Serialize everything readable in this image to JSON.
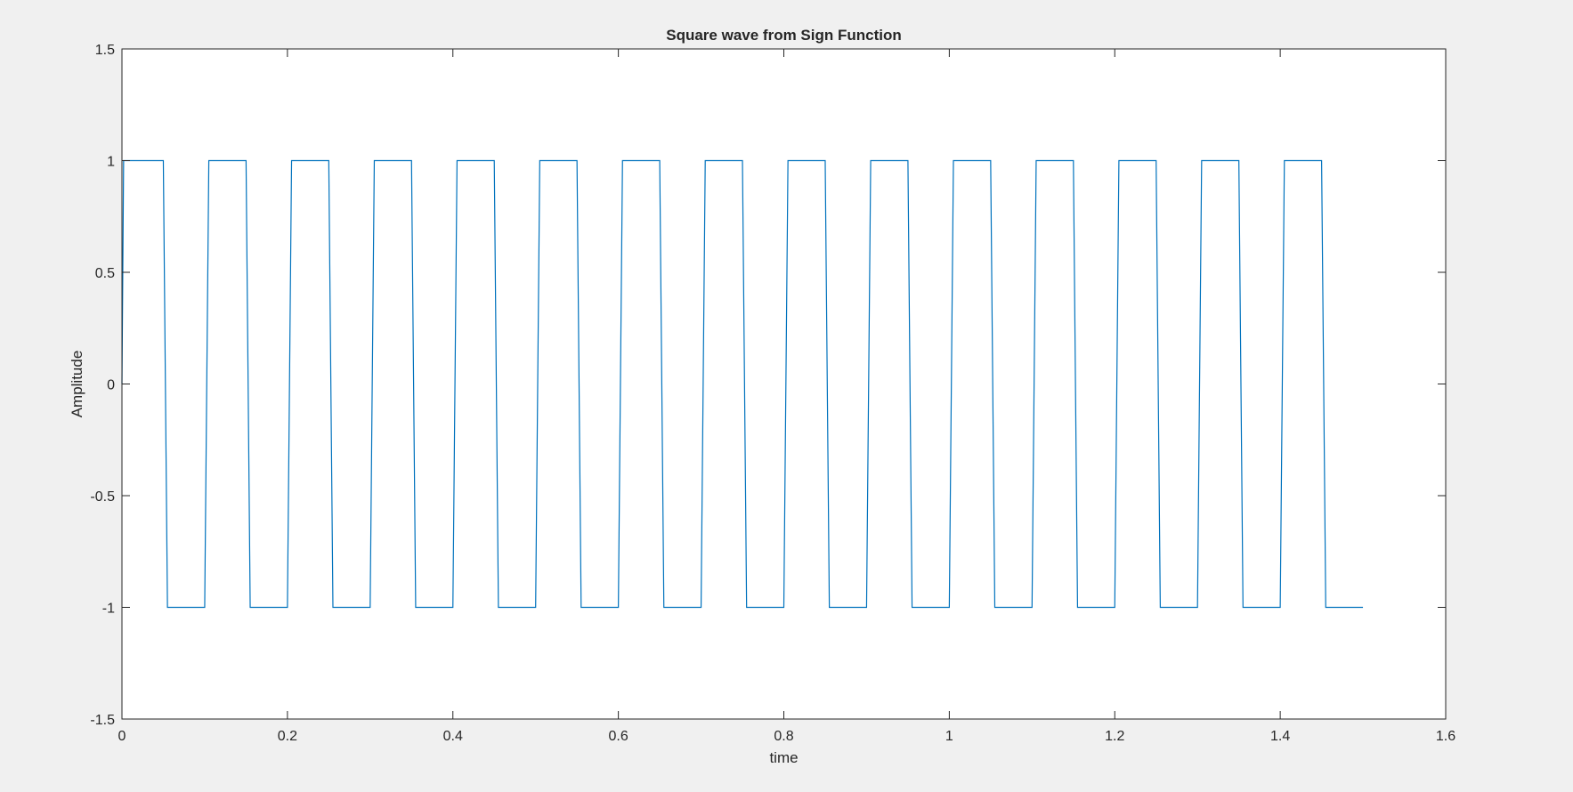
{
  "chart_data": {
    "type": "line",
    "title": "Square wave from Sign Function",
    "xlabel": "time",
    "ylabel": "Amplitude",
    "xlim": [
      0,
      1.6
    ],
    "ylim": [
      -1.5,
      1.5
    ],
    "xticks": [
      0,
      0.2,
      0.4,
      0.6,
      0.8,
      1,
      1.2,
      1.4,
      1.6
    ],
    "xtick_labels": [
      "0",
      "0.2",
      "0.4",
      "0.6",
      "0.8",
      "1",
      "1.2",
      "1.4",
      "1.6"
    ],
    "yticks": [
      -1.5,
      -1,
      -0.5,
      0,
      0.5,
      1,
      1.5
    ],
    "ytick_labels": [
      "-1.5",
      "-1",
      "-0.5",
      "0",
      "0.5",
      "1",
      "1.5"
    ],
    "grid": false,
    "legend": false,
    "series": [
      {
        "color": "#0072bd",
        "x": [
          0,
          0.002,
          0.05,
          0.055,
          0.1,
          0.105,
          0.15,
          0.155,
          0.2,
          0.205,
          0.25,
          0.255,
          0.3,
          0.305,
          0.35,
          0.355,
          0.4,
          0.405,
          0.45,
          0.455,
          0.5,
          0.505,
          0.55,
          0.555,
          0.6,
          0.605,
          0.65,
          0.655,
          0.7,
          0.705,
          0.75,
          0.755,
          0.8,
          0.805,
          0.85,
          0.855,
          0.9,
          0.905,
          0.95,
          0.955,
          1.0,
          1.005,
          1.05,
          1.055,
          1.1,
          1.105,
          1.15,
          1.155,
          1.2,
          1.205,
          1.25,
          1.255,
          1.3,
          1.305,
          1.35,
          1.355,
          1.4,
          1.405,
          1.45,
          1.455,
          1.5
        ],
        "y": [
          0,
          1,
          1,
          -1,
          -1,
          1,
          1,
          -1,
          -1,
          1,
          1,
          -1,
          -1,
          1,
          1,
          -1,
          -1,
          1,
          1,
          -1,
          -1,
          1,
          1,
          -1,
          -1,
          1,
          1,
          -1,
          -1,
          1,
          1,
          -1,
          -1,
          1,
          1,
          -1,
          -1,
          1,
          1,
          -1,
          -1,
          1,
          1,
          -1,
          -1,
          1,
          1,
          -1,
          -1,
          1,
          1,
          -1,
          -1,
          1,
          1,
          -1,
          -1,
          1,
          1,
          -1,
          -1
        ]
      }
    ]
  }
}
